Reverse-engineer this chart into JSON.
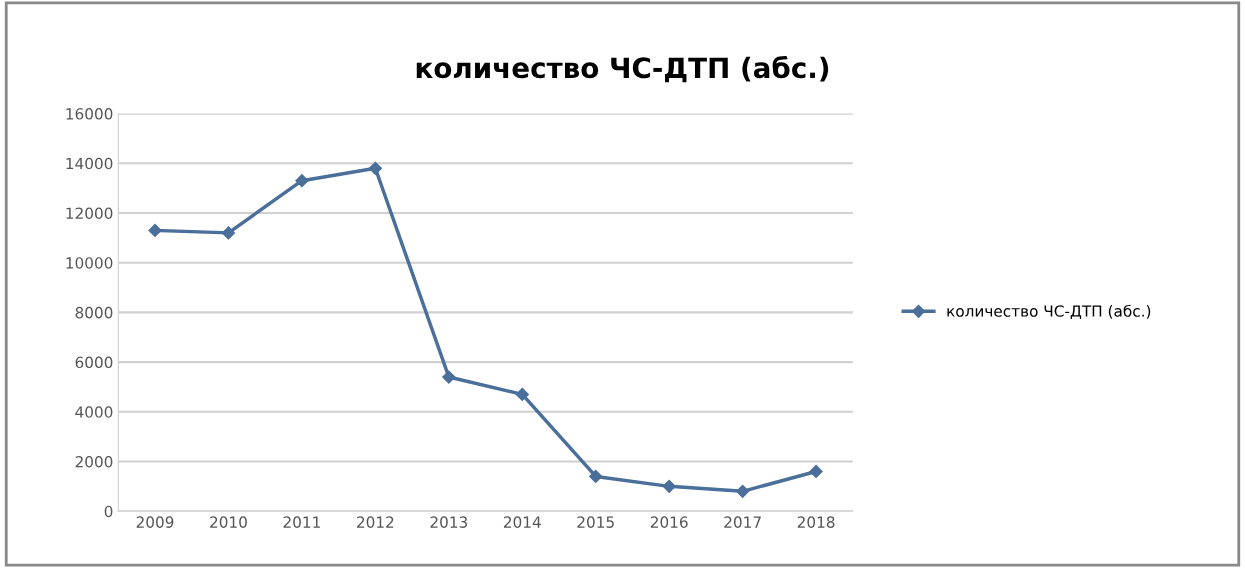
{
  "chart_data": {
    "type": "line",
    "title": "количество ЧС-ДТП (абс.)",
    "categories": [
      "2009",
      "2010",
      "2011",
      "2012",
      "2013",
      "2014",
      "2015",
      "2016",
      "2017",
      "2018"
    ],
    "series": [
      {
        "name": "количество ЧС-ДТП (абс.)",
        "color": "#4a6f9a",
        "values": [
          11300,
          11200,
          13300,
          13800,
          5400,
          4700,
          1400,
          1000,
          800,
          1600
        ]
      }
    ],
    "ylim": [
      0,
      16000
    ],
    "yticks": [
      0,
      2000,
      4000,
      6000,
      8000,
      10000,
      12000,
      14000,
      16000
    ],
    "grid": "y",
    "legend": "right",
    "marker": "diamond",
    "line_style": "solid"
  }
}
